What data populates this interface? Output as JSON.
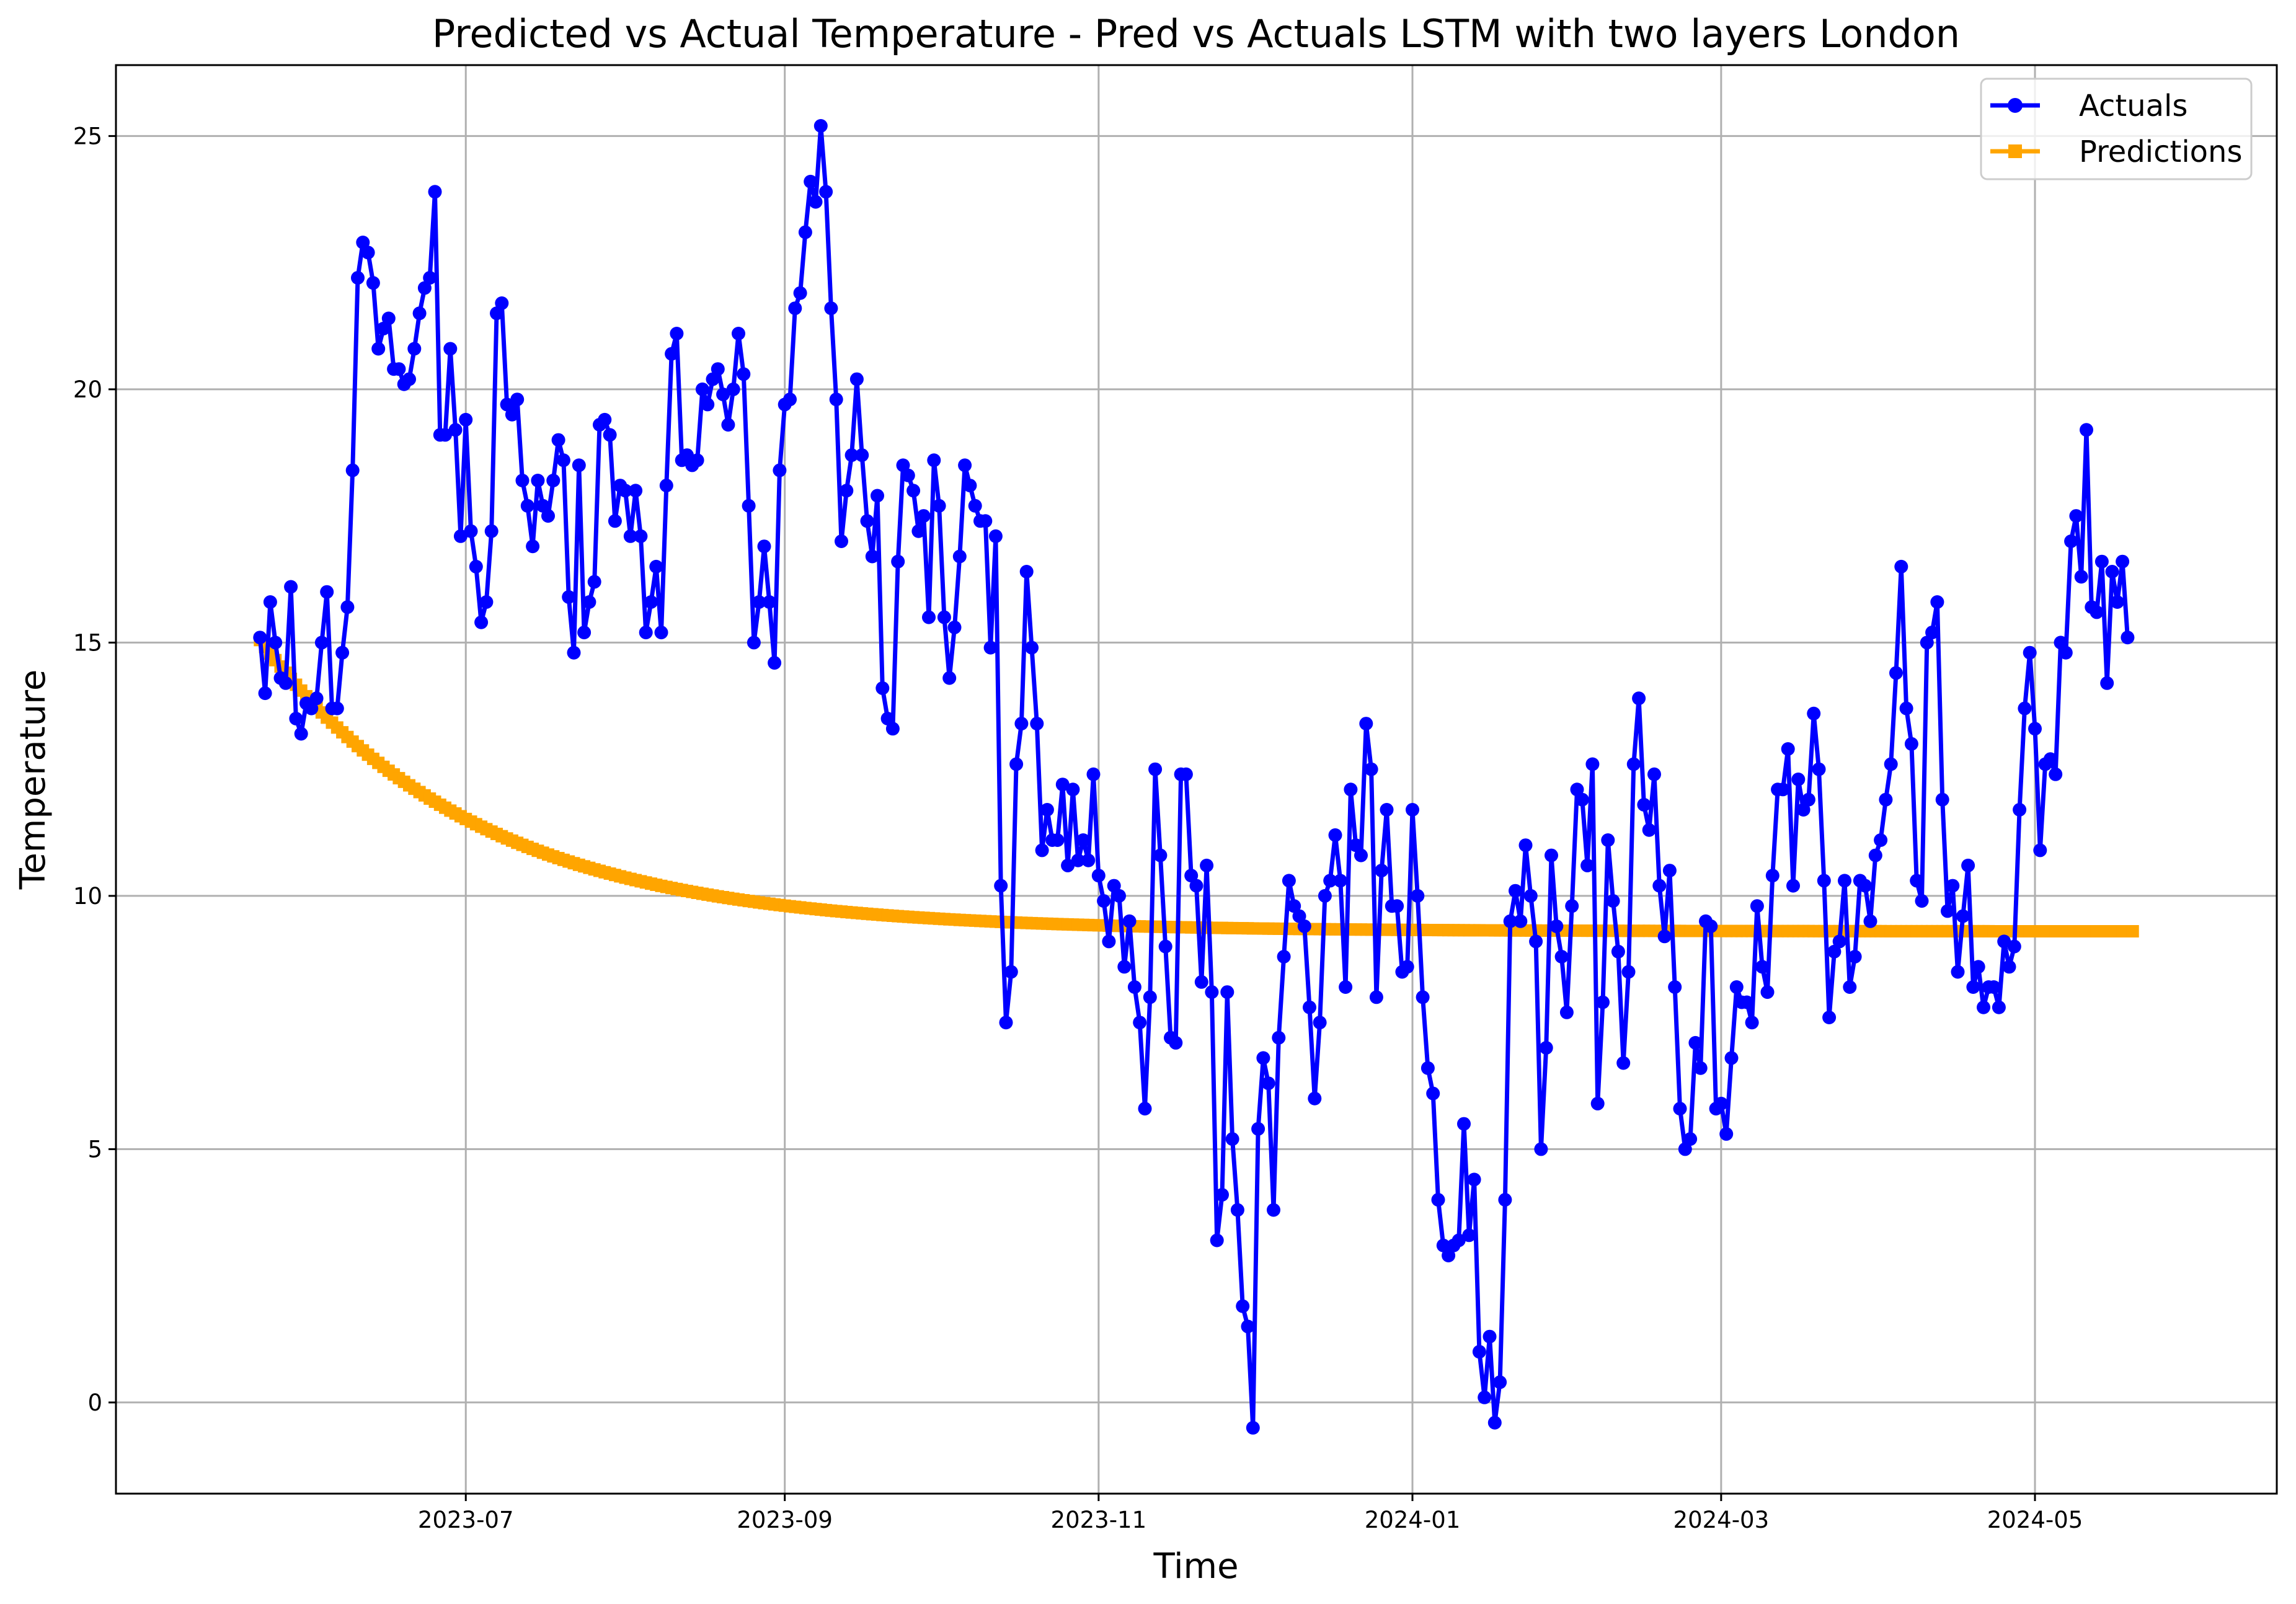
{
  "chart_data": {
    "type": "line",
    "title": "Predicted vs Actual Temperature - Pred vs Actuals LSTM with two layers London",
    "xlabel": "Time",
    "ylabel": "Temperature",
    "x_start": "2023-05-22",
    "x_end": "2024-05-20",
    "xlim": [
      "2023-04-24",
      "2024-06-17"
    ],
    "ylim": [
      -1.8,
      26.4
    ],
    "xticks": [
      "2023-07",
      "2023-09",
      "2023-11",
      "2024-01",
      "2024-03",
      "2024-05"
    ],
    "yticks": [
      0,
      5,
      10,
      15,
      20,
      25
    ],
    "grid": true,
    "legend_position": "top-right",
    "series": [
      {
        "name": "Actuals",
        "color": "#0000ff",
        "marker": "circle",
        "values": [
          15.1,
          14.0,
          15.8,
          15.0,
          14.3,
          14.2,
          16.1,
          13.5,
          13.2,
          13.8,
          13.7,
          13.9,
          15.0,
          16.0,
          13.7,
          13.7,
          14.8,
          15.7,
          18.4,
          22.2,
          22.9,
          22.7,
          22.1,
          20.8,
          21.2,
          21.4,
          20.4,
          20.4,
          20.1,
          20.2,
          20.8,
          21.5,
          22.0,
          22.2,
          23.9,
          19.1,
          19.1,
          20.8,
          19.2,
          17.1,
          19.4,
          17.2,
          16.5,
          15.4,
          15.8,
          17.2,
          21.5,
          21.7,
          19.7,
          19.5,
          19.8,
          18.2,
          17.7,
          16.9,
          18.2,
          17.7,
          17.5,
          18.2,
          19.0,
          18.6,
          15.9,
          14.8,
          18.5,
          15.2,
          15.8,
          16.2,
          19.3,
          19.4,
          19.1,
          17.4,
          18.1,
          18.0,
          17.1,
          18.0,
          17.1,
          15.2,
          15.8,
          16.5,
          15.2,
          18.1,
          20.7,
          21.1,
          18.6,
          18.7,
          18.5,
          18.6,
          20.0,
          19.7,
          20.2,
          20.4,
          19.9,
          19.3,
          20.0,
          21.1,
          20.3,
          17.7,
          15.0,
          15.8,
          16.9,
          15.8,
          14.6,
          18.4,
          19.7,
          19.8,
          21.6,
          21.9,
          23.1,
          24.1,
          23.7,
          25.2,
          23.9,
          21.6,
          19.8,
          17.0,
          18.0,
          18.7,
          20.2,
          18.7,
          17.4,
          16.7,
          17.9,
          14.1,
          13.5,
          13.3,
          16.6,
          18.5,
          18.3,
          18.0,
          17.2,
          17.5,
          15.5,
          18.6,
          17.7,
          15.5,
          14.3,
          15.3,
          16.7,
          18.5,
          18.1,
          17.7,
          17.4,
          17.4,
          14.9,
          17.1,
          10.2,
          7.5,
          8.5,
          12.6,
          13.4,
          16.4,
          14.9,
          13.4,
          10.9,
          11.7,
          11.1,
          11.1,
          12.2,
          10.6,
          12.1,
          10.7,
          11.1,
          10.7,
          12.4,
          10.4,
          9.9,
          9.1,
          10.2,
          10.0,
          8.6,
          9.5,
          8.2,
          7.5,
          5.8,
          8.0,
          12.5,
          10.8,
          9.0,
          7.2,
          7.1,
          12.4,
          12.4,
          10.4,
          10.2,
          8.3,
          10.6,
          8.1,
          3.2,
          4.1,
          8.1,
          5.2,
          3.8,
          1.9,
          1.5,
          -0.5,
          5.4,
          6.8,
          6.3,
          3.8,
          7.2,
          8.8,
          10.3,
          9.8,
          9.6,
          9.4,
          7.8,
          6.0,
          7.5,
          10.0,
          10.3,
          11.2,
          10.3,
          8.2,
          12.1,
          11.0,
          10.8,
          13.4,
          12.5,
          8.0,
          10.5,
          11.7,
          9.8,
          9.8,
          8.5,
          8.6,
          11.7,
          10.0,
          8.0,
          6.6,
          6.1,
          4.0,
          3.1,
          2.9,
          3.1,
          3.2,
          5.5,
          3.3,
          4.4,
          1.0,
          0.1,
          1.3,
          -0.4,
          0.4,
          4.0,
          9.5,
          10.1,
          9.5,
          11.0,
          10.0,
          9.1,
          5.0,
          7.0,
          10.8,
          9.4,
          8.8,
          7.7,
          9.8,
          12.1,
          11.9,
          10.6,
          12.6,
          5.9,
          7.9,
          11.1,
          9.9,
          8.9,
          6.7,
          8.5,
          12.6,
          13.9,
          11.8,
          11.3,
          12.4,
          10.2,
          9.2,
          10.5,
          8.2,
          5.8,
          5.0,
          5.2,
          7.1,
          6.6,
          9.5,
          9.4,
          5.8,
          5.9,
          5.3,
          6.8,
          8.2,
          7.9,
          7.9,
          7.5,
          9.8,
          8.6,
          8.1,
          10.4,
          12.1,
          12.1,
          12.9,
          10.2,
          12.3,
          11.7,
          11.9,
          13.6,
          12.5,
          10.3,
          7.6,
          8.9,
          9.1,
          10.3,
          8.2,
          8.8,
          10.3,
          10.2,
          9.5,
          10.8,
          11.1,
          11.9,
          12.6,
          14.4,
          16.5,
          13.7,
          13.0,
          10.3,
          9.9,
          15.0,
          15.2,
          15.8,
          11.9,
          9.7,
          10.2,
          8.5,
          9.6,
          10.6,
          8.2,
          8.6,
          7.8,
          8.2,
          8.2,
          7.8,
          9.1,
          8.6,
          9.0,
          11.7,
          13.7,
          14.8,
          13.3,
          10.9,
          12.6,
          12.7,
          12.4,
          15.0,
          14.8,
          17.0,
          17.5,
          16.3,
          19.2,
          15.7,
          15.6,
          16.6,
          14.2,
          16.4,
          15.8,
          16.6,
          15.1
        ]
      },
      {
        "name": "Predictions",
        "color": "#ffa500",
        "marker": "square",
        "start": 15.05,
        "plateau": 9.3,
        "decay_days": 42,
        "point_count": 365
      }
    ]
  }
}
